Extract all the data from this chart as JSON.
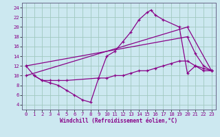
{
  "bg_color": "#cce8f0",
  "grid_color": "#a0c8c0",
  "line_color": "#880088",
  "marker": "+",
  "xlabel": "Windchill (Refroidissement éolien,°C)",
  "xlim": [
    -0.5,
    23.5
  ],
  "ylim": [
    3,
    25
  ],
  "yticks": [
    4,
    6,
    8,
    10,
    12,
    14,
    16,
    18,
    20,
    22,
    24
  ],
  "xticks": [
    0,
    1,
    2,
    3,
    4,
    5,
    6,
    7,
    8,
    9,
    10,
    11,
    12,
    13,
    14,
    15,
    16,
    17,
    18,
    19,
    20,
    21,
    22,
    23
  ],
  "series": [
    {
      "x": [
        0,
        1,
        2,
        3,
        4,
        5,
        6,
        7,
        8,
        9,
        10,
        11,
        12,
        13,
        14,
        15,
        15.5,
        16,
        17,
        19,
        20,
        21,
        22,
        23
      ],
      "y": [
        12,
        10,
        9,
        8.5,
        8,
        7,
        6,
        5,
        4.5,
        9.5,
        14,
        15,
        17,
        19,
        21.5,
        23,
        23.5,
        22.5,
        21.5,
        20,
        10.5,
        12,
        11,
        11
      ]
    },
    {
      "x": [
        0,
        20,
        21,
        22,
        23
      ],
      "y": [
        12,
        18,
        14.5,
        12,
        11
      ]
    },
    {
      "x": [
        0,
        20,
        23
      ],
      "y": [
        10,
        20,
        11
      ]
    },
    {
      "x": [
        1,
        2,
        3,
        4,
        5,
        9,
        10,
        11,
        12,
        13,
        14,
        15,
        16,
        17,
        18,
        19,
        20,
        21,
        22,
        23
      ],
      "y": [
        10,
        9,
        9,
        9,
        9,
        9.5,
        9.5,
        10,
        10,
        10.5,
        11,
        11,
        11.5,
        12,
        12.5,
        13,
        13,
        12,
        11.5,
        11
      ]
    }
  ]
}
